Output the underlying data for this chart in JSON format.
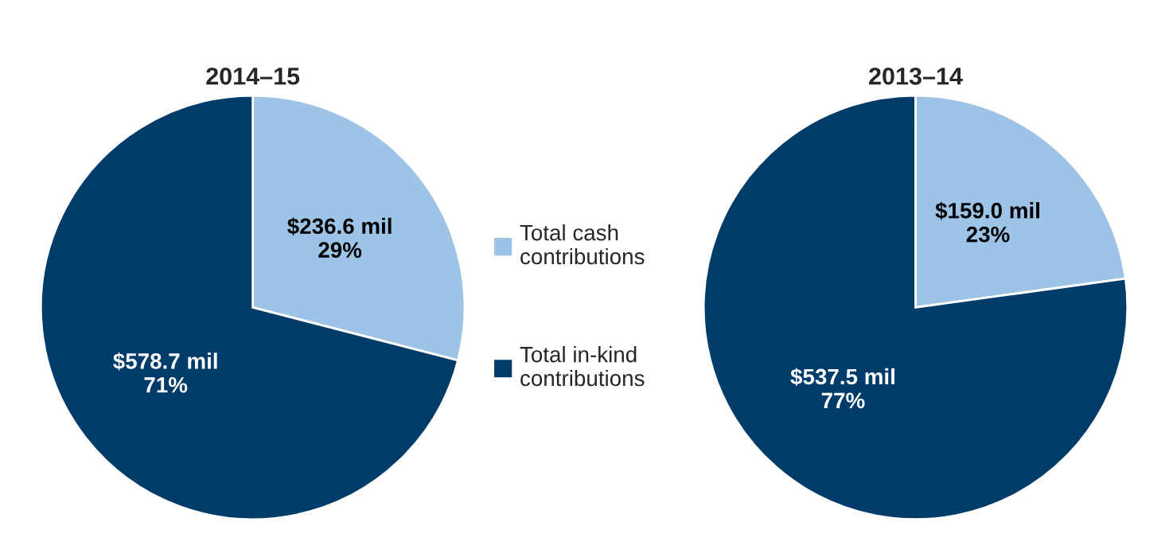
{
  "chart_data": [
    {
      "type": "pie",
      "title": "2014–15",
      "categories": [
        "Total cash contributions",
        "Total in-kind contributions"
      ],
      "values": [
        236.6,
        578.7
      ],
      "colors": [
        "#9dc3e6",
        "#003c69"
      ],
      "value_labels": [
        "$236.6 mil\n29%",
        "$578.7 mil\n71%"
      ],
      "legend": "right"
    },
    {
      "type": "pie",
      "title": "2013–14",
      "categories": [
        null,
        null
      ],
      "values": [
        159.0,
        537.5
      ],
      "colors": [
        "#9dc3e6",
        "#003c69"
      ],
      "value_labels": [
        "$159.0 mil\n23%",
        "$537.5 mil\n77%"
      ]
    }
  ]
}
